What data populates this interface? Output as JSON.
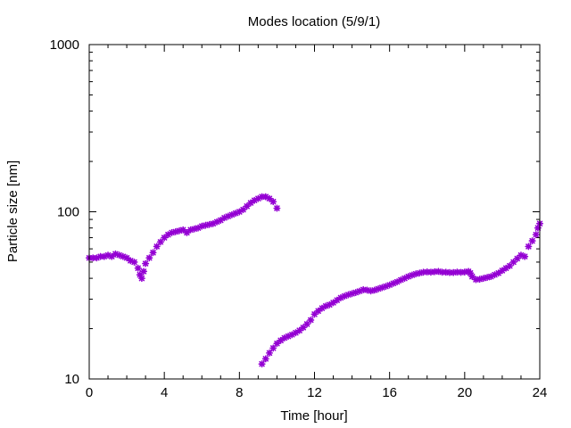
{
  "chart_data": {
    "type": "scatter",
    "title": "Modes location (5/9/1)",
    "xlabel": "Time [hour]",
    "ylabel": "Particle size [nm]",
    "xlim": [
      0,
      24
    ],
    "ylim": [
      10,
      1000
    ],
    "y_scale": "log",
    "grid": false,
    "legend": "none",
    "x_ticks": [
      0,
      4,
      8,
      12,
      16,
      20,
      24
    ],
    "x_tick_labels": [
      "0",
      "4",
      "8",
      "12",
      "16",
      "20",
      "24"
    ],
    "y_ticks": [
      10,
      100,
      1000
    ],
    "y_tick_labels": [
      "10",
      "100",
      "1000"
    ],
    "marker_color": "#9400d3",
    "series": [
      {
        "points": [
          [
            0.0,
            53
          ],
          [
            0.2,
            53
          ],
          [
            0.4,
            53
          ],
          [
            0.6,
            54
          ],
          [
            0.8,
            54
          ],
          [
            1.0,
            55
          ],
          [
            1.2,
            54
          ],
          [
            1.4,
            56
          ],
          [
            1.6,
            55
          ],
          [
            1.8,
            54
          ],
          [
            2.0,
            53
          ],
          [
            2.2,
            51
          ],
          [
            2.4,
            50
          ],
          [
            2.6,
            46
          ],
          [
            2.7,
            42
          ],
          [
            2.8,
            40
          ],
          [
            2.9,
            44
          ],
          [
            3.0,
            49
          ],
          [
            3.2,
            53
          ],
          [
            3.4,
            57
          ],
          [
            3.6,
            62
          ],
          [
            3.8,
            66
          ],
          [
            4.0,
            70
          ],
          [
            4.2,
            73
          ],
          [
            4.4,
            75
          ],
          [
            4.6,
            76
          ],
          [
            4.8,
            77
          ],
          [
            5.0,
            78
          ],
          [
            5.2,
            75
          ],
          [
            5.4,
            78
          ],
          [
            5.6,
            79
          ],
          [
            5.8,
            80
          ],
          [
            6.0,
            82
          ],
          [
            6.2,
            83
          ],
          [
            6.4,
            84
          ],
          [
            6.6,
            85
          ],
          [
            6.8,
            87
          ],
          [
            7.0,
            89
          ],
          [
            7.2,
            92
          ],
          [
            7.4,
            94
          ],
          [
            7.6,
            96
          ],
          [
            7.8,
            98
          ],
          [
            8.0,
            100
          ],
          [
            8.2,
            103
          ],
          [
            8.4,
            108
          ],
          [
            8.6,
            113
          ],
          [
            8.8,
            117
          ],
          [
            9.0,
            120
          ],
          [
            9.2,
            123
          ],
          [
            9.4,
            123
          ],
          [
            9.6,
            120
          ],
          [
            9.8,
            115
          ],
          [
            10.0,
            105
          ]
        ]
      },
      {
        "points": [
          [
            9.2,
            12.3
          ],
          [
            9.4,
            13.2
          ],
          [
            9.6,
            14.3
          ],
          [
            9.8,
            15.3
          ],
          [
            10.0,
            16.3
          ],
          [
            10.2,
            17.0
          ],
          [
            10.4,
            17.6
          ],
          [
            10.6,
            18.0
          ],
          [
            10.8,
            18.4
          ],
          [
            11.0,
            18.9
          ],
          [
            11.2,
            19.5
          ],
          [
            11.4,
            20.3
          ],
          [
            11.6,
            21.3
          ],
          [
            11.8,
            22.5
          ],
          [
            12.0,
            24.4
          ],
          [
            12.2,
            25.5
          ],
          [
            12.4,
            26.5
          ],
          [
            12.6,
            27.3
          ],
          [
            12.8,
            27.8
          ],
          [
            13.0,
            28.6
          ],
          [
            13.2,
            29.6
          ],
          [
            13.4,
            30.6
          ],
          [
            13.6,
            31.3
          ],
          [
            13.8,
            31.9
          ],
          [
            14.0,
            32.4
          ],
          [
            14.2,
            32.9
          ],
          [
            14.4,
            33.5
          ],
          [
            14.6,
            34.2
          ],
          [
            14.8,
            34.0
          ],
          [
            15.0,
            33.6
          ],
          [
            15.2,
            34.0
          ],
          [
            15.4,
            34.6
          ],
          [
            15.6,
            35.2
          ],
          [
            15.8,
            35.8
          ],
          [
            16.0,
            36.5
          ],
          [
            16.2,
            37.3
          ],
          [
            16.4,
            38.1
          ],
          [
            16.6,
            39.1
          ],
          [
            16.8,
            40.0
          ],
          [
            17.0,
            41.0
          ],
          [
            17.2,
            41.8
          ],
          [
            17.4,
            42.5
          ],
          [
            17.6,
            43.0
          ],
          [
            17.8,
            43.5
          ],
          [
            18.0,
            43.7
          ],
          [
            18.2,
            43.5
          ],
          [
            18.4,
            43.8
          ],
          [
            18.6,
            44.0
          ],
          [
            18.8,
            43.5
          ],
          [
            19.0,
            43.5
          ],
          [
            19.2,
            43.3
          ],
          [
            19.4,
            43.3
          ],
          [
            19.6,
            43.6
          ],
          [
            19.8,
            43.4
          ],
          [
            20.0,
            43.6
          ],
          [
            20.2,
            44.0
          ],
          [
            20.3,
            43.0
          ],
          [
            20.4,
            41.0
          ],
          [
            20.6,
            39.3
          ],
          [
            20.8,
            39.5
          ],
          [
            21.0,
            40.0
          ],
          [
            21.2,
            40.5
          ],
          [
            21.4,
            41.0
          ],
          [
            21.6,
            42.0
          ],
          [
            21.8,
            43.0
          ],
          [
            22.0,
            44.5
          ],
          [
            22.2,
            46.0
          ],
          [
            22.4,
            47.5
          ],
          [
            22.6,
            50.0
          ],
          [
            22.8,
            52.5
          ],
          [
            23.0,
            55.0
          ],
          [
            23.2,
            54.0
          ],
          [
            23.4,
            62.0
          ],
          [
            23.6,
            67.0
          ],
          [
            23.8,
            73.0
          ],
          [
            23.9,
            80.0
          ],
          [
            24.0,
            85.0
          ]
        ]
      }
    ]
  }
}
